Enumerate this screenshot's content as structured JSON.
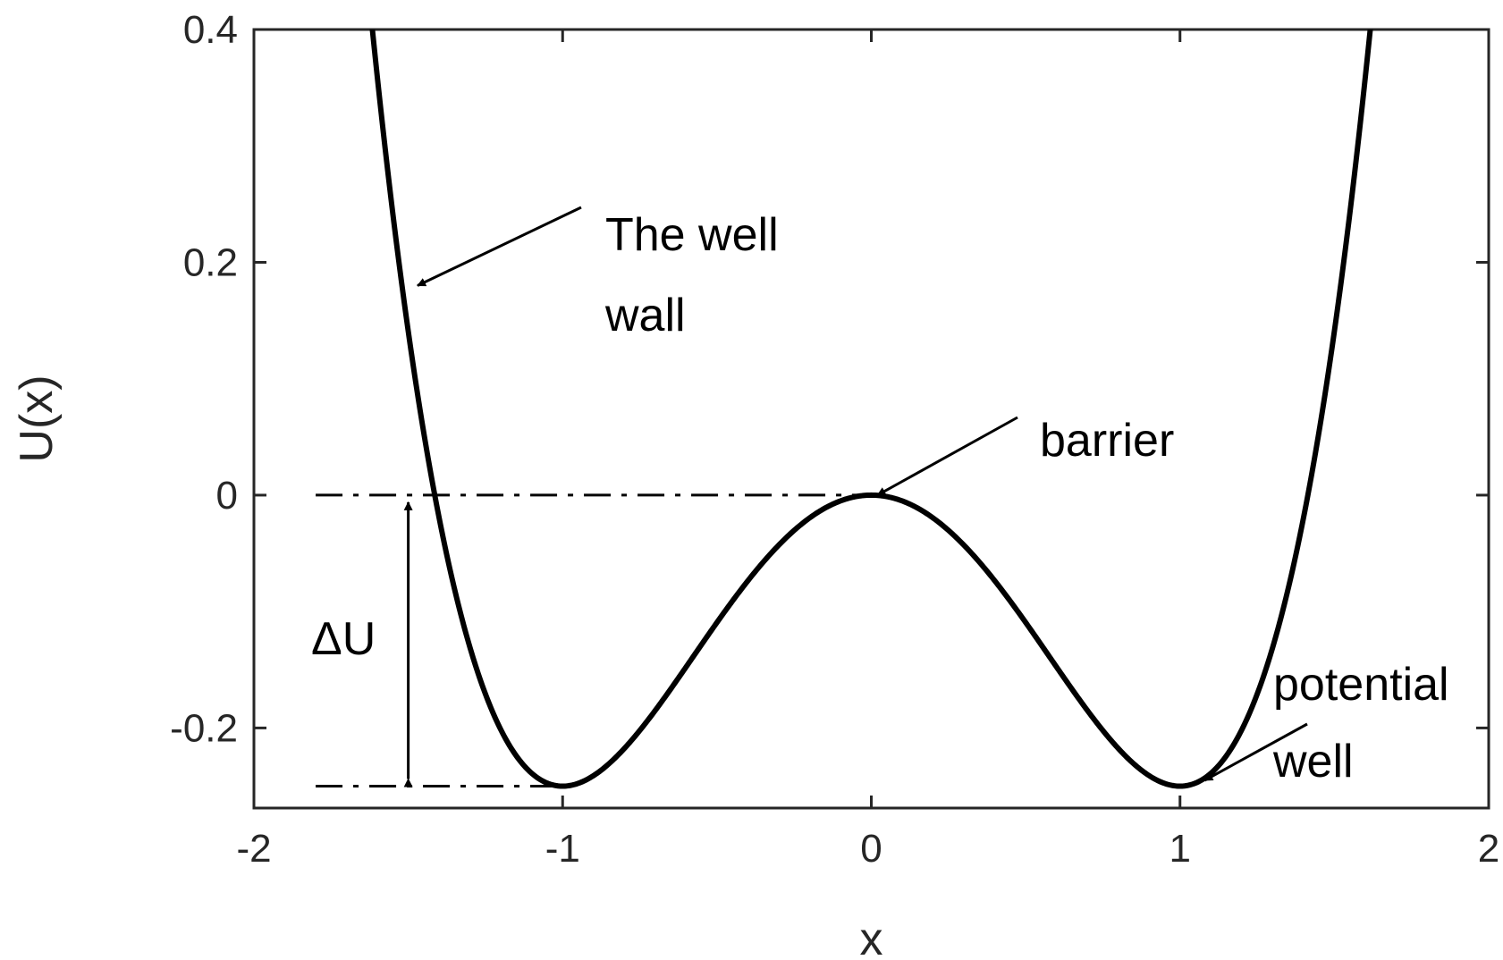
{
  "chart_data": {
    "type": "line",
    "title": "",
    "xlabel": "x",
    "ylabel": "U(x)",
    "xlim": [
      -2,
      2
    ],
    "ylim": [
      -0.2688,
      0.4
    ],
    "x_ticks": [
      "-2",
      "-1",
      "0",
      "1",
      "2"
    ],
    "y_ticks": [
      "-0.2",
      "0",
      "0.2",
      "0.4"
    ],
    "grid": false,
    "legend": "none",
    "series": [
      {
        "function": "U(x) = x^4/4 - x^2/2",
        "x": [
          -1.6,
          -1.5,
          -1.4,
          -1.3,
          -1.2,
          -1.1,
          -1.0,
          -0.9,
          -0.8,
          -0.7,
          -0.6,
          -0.5,
          -0.4,
          -0.3,
          -0.2,
          -0.1,
          0,
          0.1,
          0.2,
          0.3,
          0.4,
          0.5,
          0.6,
          0.7,
          0.8,
          0.9,
          1.0,
          1.1,
          1.2,
          1.3,
          1.4,
          1.5,
          1.6
        ],
        "y": [
          0.3584,
          0.1406,
          -0.0196,
          -0.131,
          -0.2016,
          -0.239,
          -0.25,
          -0.241,
          -0.2176,
          -0.185,
          -0.1476,
          -0.1094,
          -0.0736,
          -0.043,
          -0.0196,
          -0.005,
          0,
          -0.005,
          -0.0196,
          -0.043,
          -0.0736,
          -0.1094,
          -0.1476,
          -0.185,
          -0.2176,
          -0.241,
          -0.25,
          -0.239,
          -0.2016,
          -0.131,
          -0.0196,
          0.1406,
          0.3584
        ],
        "color": "#000000"
      }
    ],
    "reference_lines": [
      {
        "y": 0,
        "x_range": [
          -1.8,
          0
        ],
        "style": "dash-dot"
      },
      {
        "y": -0.25,
        "x_range": [
          -1.8,
          -1.0
        ],
        "style": "dash-dot"
      }
    ],
    "annotations": [
      {
        "id": "wall",
        "lines": [
          "The well",
          "wall"
        ],
        "arrow_to": [
          -1.47,
          0.18
        ]
      },
      {
        "id": "barrier",
        "lines": [
          "barrier"
        ],
        "arrow_to": [
          0.02,
          0.0
        ]
      },
      {
        "id": "well",
        "lines": [
          "potential",
          "well"
        ],
        "arrow_to": [
          1.08,
          -0.245
        ]
      },
      {
        "id": "delta",
        "lines": [
          "ΔU"
        ],
        "span": [
          0,
          -0.25
        ],
        "at_x": -1.5
      }
    ]
  }
}
